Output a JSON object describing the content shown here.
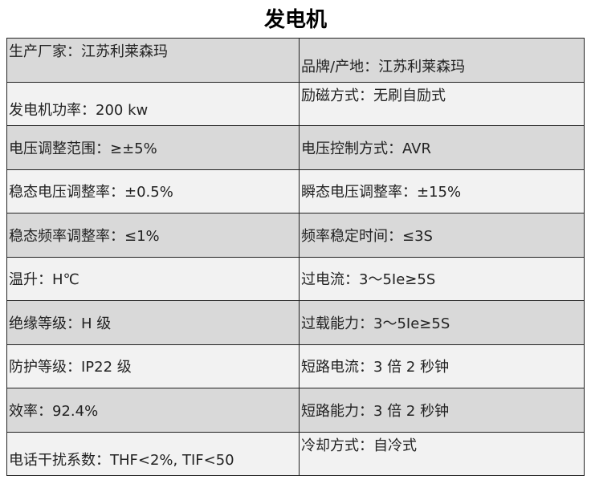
{
  "title": "发电机",
  "rows": [
    {
      "left": "生产厂家：江苏利莱森玛",
      "right": "品牌/产地：江苏利莱森玛"
    },
    {
      "left": "发电机功率：200 kw",
      "right": "励磁方式：无刷自励式"
    },
    {
      "left": "电压调整范围：≥±5%",
      "right": "电压控制方式：AVR"
    },
    {
      "left": "稳态电压调整率：±0.5%",
      "right": "瞬态电压调整率：±15%"
    },
    {
      "left": "稳态频率调整率：≤1%",
      "right": "频率稳定时间：≤3S"
    },
    {
      "left": "温升：H℃",
      "right": "过电流：3～5Ie≥5S"
    },
    {
      "left": "绝缘等级：H 级",
      "right": "过载能力：3～5Ie≥5S"
    },
    {
      "left": "防护等级：IP22 级",
      "right": "短路电流：3 倍 2 秒钟"
    },
    {
      "left": "效率：92.4%",
      "right": "短路能力：3 倍 2 秒钟"
    },
    {
      "left": "电话干扰系数：THF<2%, TIF<50",
      "right": "冷却方式：自冷式"
    }
  ]
}
